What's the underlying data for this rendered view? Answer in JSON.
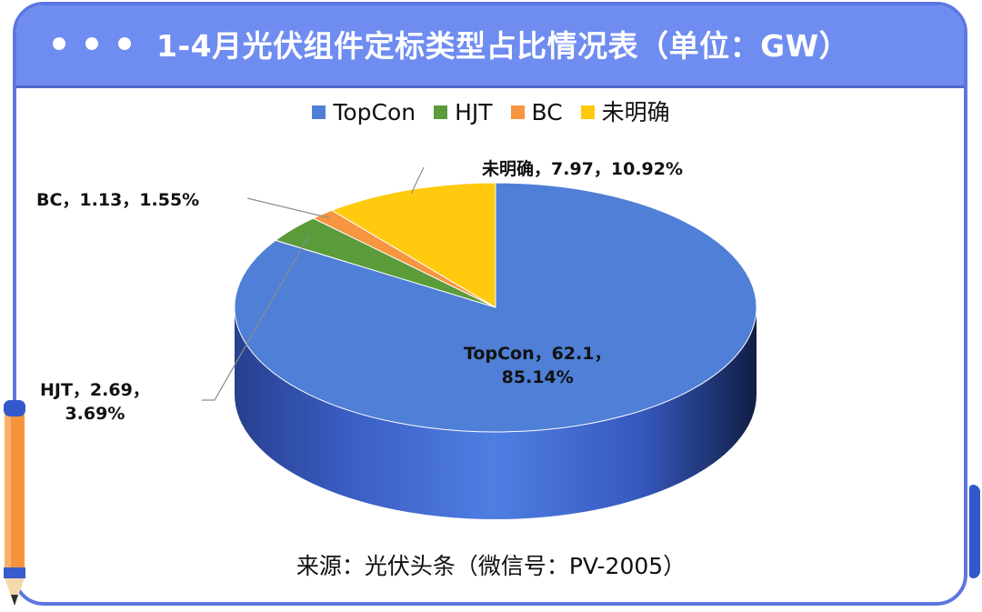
{
  "title": "1-4月光伏组件定标类型占比情况表（单位：GW）",
  "source": "来源：光伏头条（微信号：PV-2005）",
  "colors": {
    "header_bg": "#6f8cf0",
    "frame": "#5b77e3",
    "topcon": "#4f7fd6",
    "hjt": "#5b9b3a",
    "bc": "#f79540",
    "unclear": "#ffc90e"
  },
  "icons": [
    "window-dot-icon",
    "pencil-icon"
  ],
  "chart_data": {
    "type": "pie",
    "style": "3d",
    "legend": "top",
    "series": [
      {
        "name": "TopCon",
        "value": 62.1,
        "percent": 85.14,
        "label_line1": "TopCon，62.1，",
        "label_line2": "85.14%"
      },
      {
        "name": "HJT",
        "value": 2.69,
        "percent": 3.69,
        "label_line1": "HJT，2.69，",
        "label_line2": "3.69%"
      },
      {
        "name": "BC",
        "value": 1.13,
        "percent": 1.55,
        "label_line1": "BC，1.13，1.55%",
        "label_line2": ""
      },
      {
        "name": "未明确",
        "value": 7.97,
        "percent": 10.92,
        "label_line1": "未明确，7.97，10.92%",
        "label_line2": ""
      }
    ]
  }
}
